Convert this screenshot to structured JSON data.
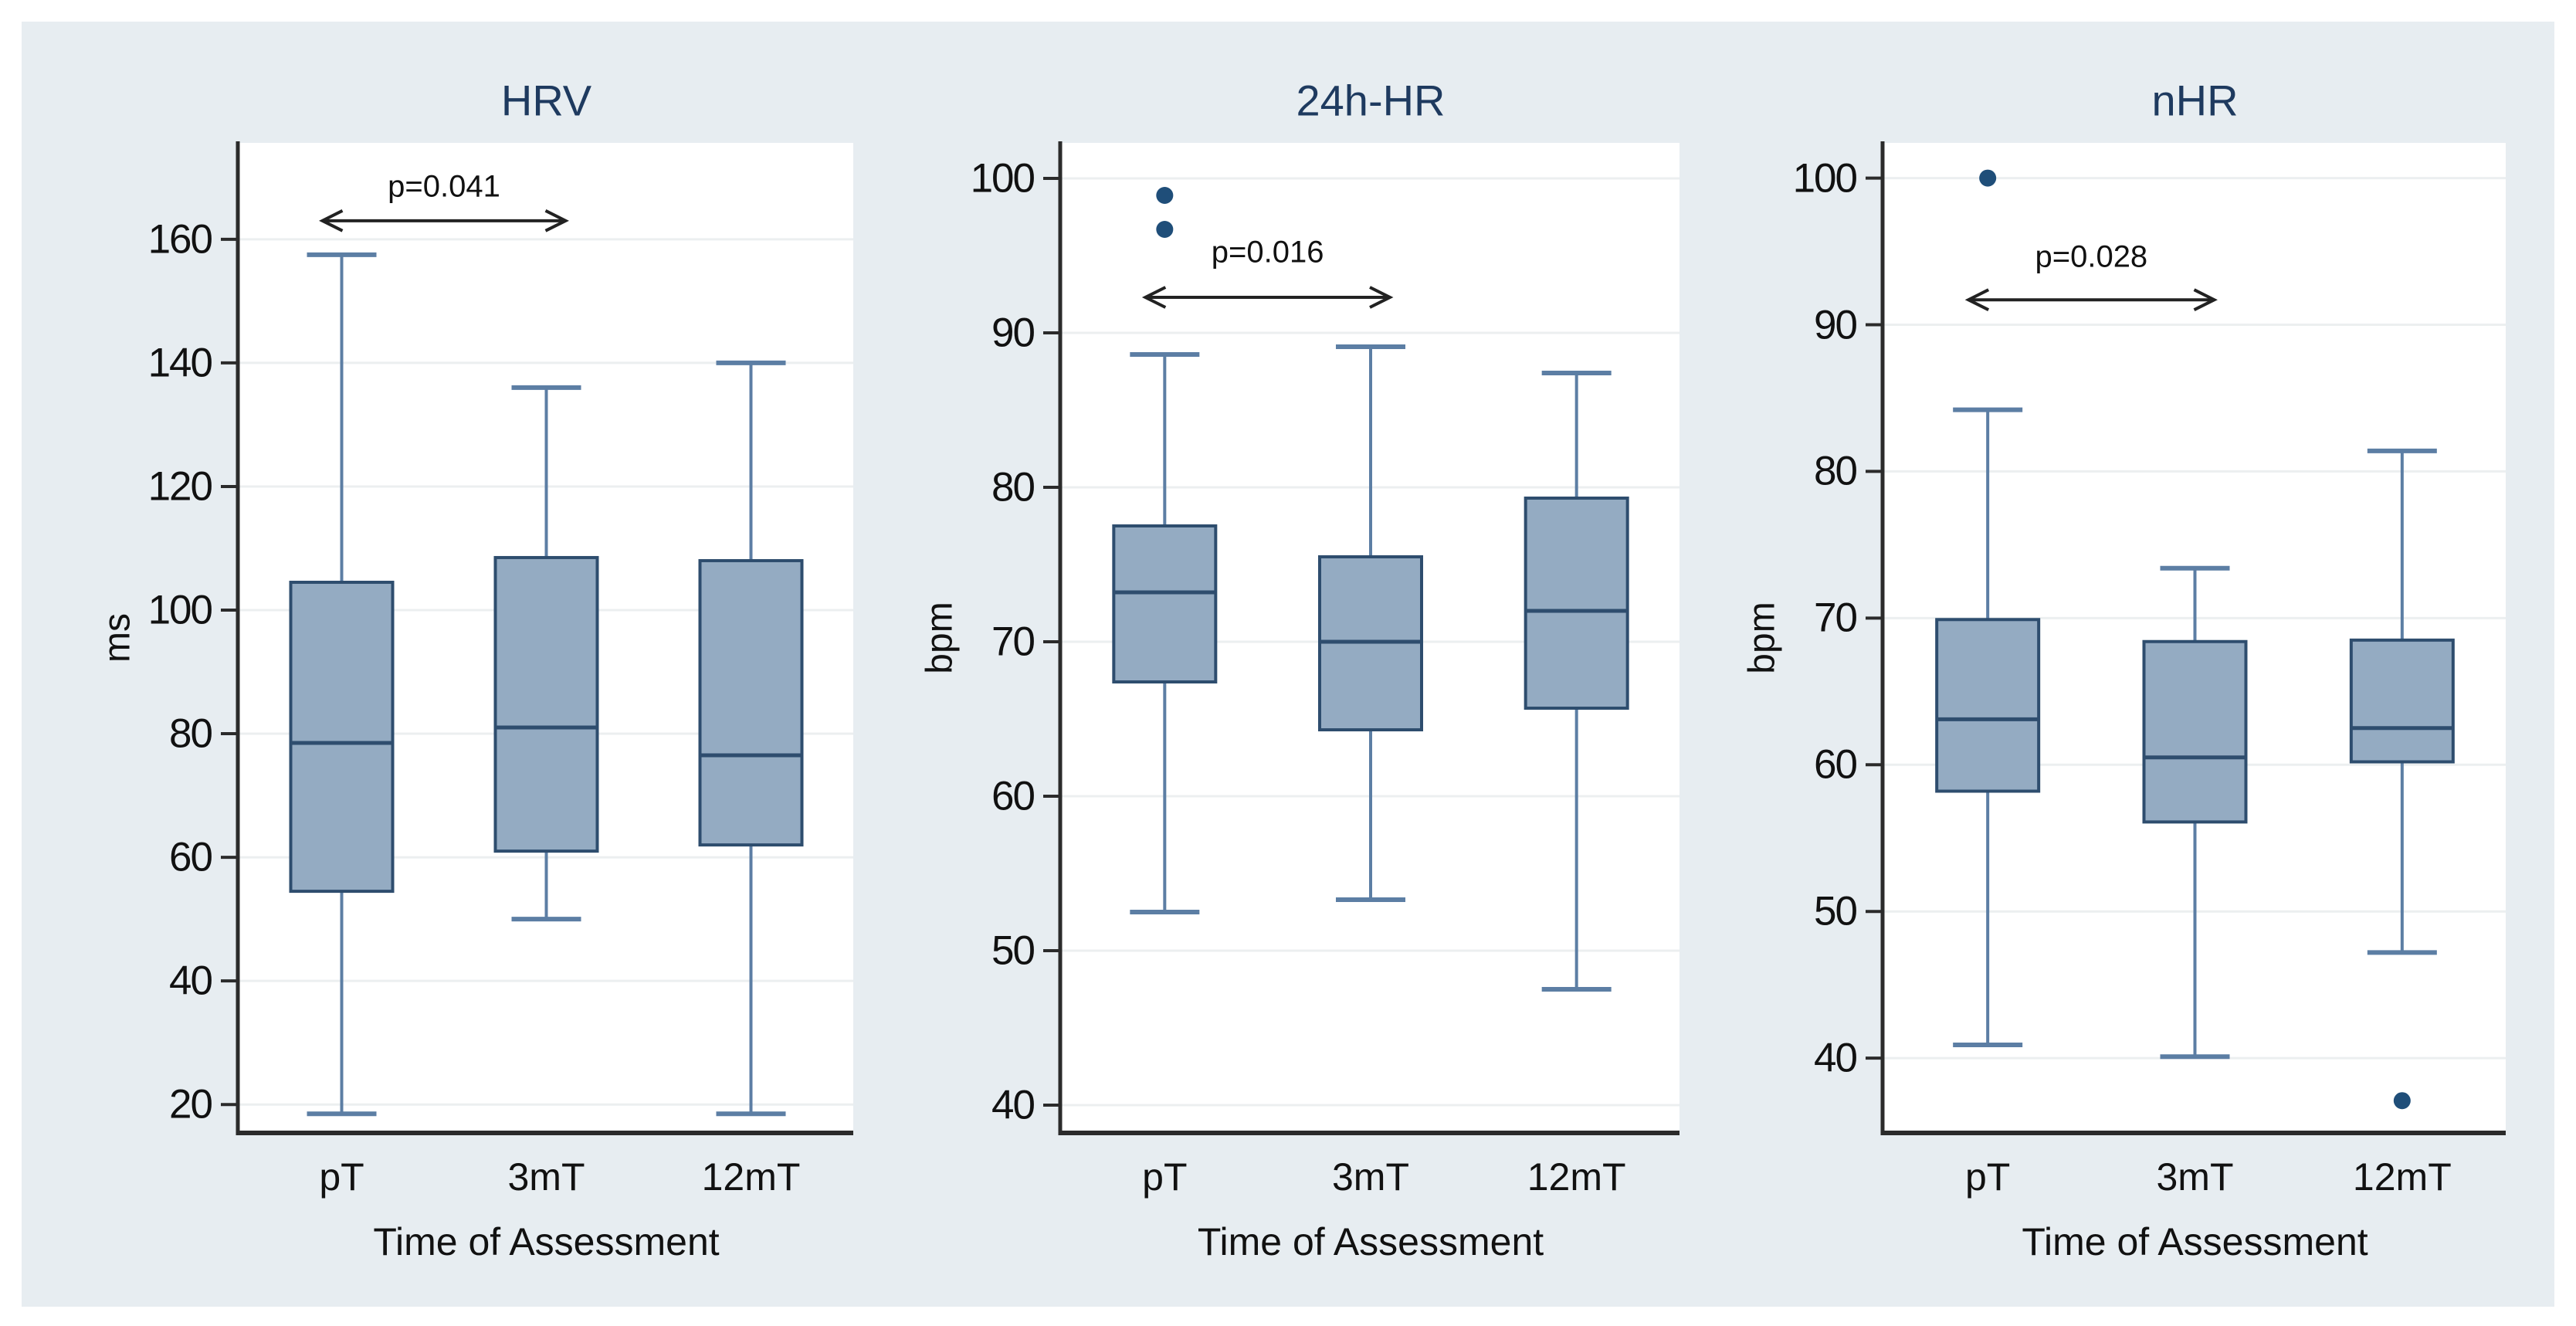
{
  "colors": {
    "figure_background": "#e7edf1",
    "plot_background": "#ffffff",
    "grid_line": "#eceff0",
    "axis_line": "#2b2b2b",
    "text": "#111111",
    "title_text": "#1e3a5f",
    "box_fill": "#94abc2",
    "box_border": "#2e4d6e",
    "median_line": "#2e4d6e",
    "whisker": "#5c7ea4",
    "outlier": "#1f4e79",
    "annotation": "#222222"
  },
  "chart_data": [
    {
      "type": "box",
      "title": "HRV",
      "ylabel": "ms",
      "xlabel": "Time of Assessment",
      "categories": [
        "pT",
        "3mT",
        "12mT"
      ],
      "y_ticks": [
        20,
        40,
        60,
        80,
        100,
        120,
        140,
        160
      ],
      "y_domain": [
        15.4,
        175.6
      ],
      "grid": true,
      "legend": "none",
      "boxes": [
        {
          "category": "pT",
          "whisker_low": 18.5,
          "q1": 54.5,
          "median": 78.5,
          "q3": 104.5,
          "whisker_high": 157.5,
          "outliers": []
        },
        {
          "category": "3mT",
          "whisker_low": 50,
          "q1": 61,
          "median": 81,
          "q3": 108.5,
          "whisker_high": 136,
          "outliers": []
        },
        {
          "category": "12mT",
          "whisker_low": 18.5,
          "q1": 62,
          "median": 76.5,
          "q3": 108,
          "whisker_high": 140,
          "outliers": []
        }
      ],
      "significance": {
        "label": "p=0.041",
        "between": [
          "pT",
          "3mT"
        ],
        "arrow_y": 163,
        "text_y": 168.5
      }
    },
    {
      "type": "box",
      "title": "24h-HR",
      "ylabel": "bpm",
      "xlabel": "Time of Assessment",
      "categories": [
        "pT",
        "3mT",
        "12mT"
      ],
      "y_ticks": [
        40,
        50,
        60,
        70,
        80,
        90,
        100
      ],
      "y_domain": [
        38.2,
        102.3
      ],
      "grid": true,
      "legend": "none",
      "boxes": [
        {
          "category": "pT",
          "whisker_low": 52.5,
          "q1": 67.4,
          "median": 73.2,
          "q3": 77.5,
          "whisker_high": 88.6,
          "outliers": [
            98.9,
            96.7
          ]
        },
        {
          "category": "3mT",
          "whisker_low": 53.3,
          "q1": 64.3,
          "median": 70,
          "q3": 75.5,
          "whisker_high": 89.1,
          "outliers": []
        },
        {
          "category": "12mT",
          "whisker_low": 47.5,
          "q1": 65.7,
          "median": 72,
          "q3": 79.3,
          "whisker_high": 87.4,
          "outliers": []
        }
      ],
      "significance": {
        "label": "p=0.016",
        "between": [
          "pT",
          "3mT"
        ],
        "arrow_y": 92.3,
        "text_y": 95.2
      }
    },
    {
      "type": "box",
      "title": "nHR",
      "ylabel": "bpm",
      "xlabel": "Time of Assessment",
      "categories": [
        "pT",
        "3mT",
        "12mT"
      ],
      "y_ticks": [
        40,
        50,
        60,
        70,
        80,
        90,
        100
      ],
      "y_domain": [
        34.9,
        102.4
      ],
      "grid": true,
      "legend": "none",
      "boxes": [
        {
          "category": "pT",
          "whisker_low": 40.9,
          "q1": 58.2,
          "median": 63.1,
          "q3": 69.9,
          "whisker_high": 84.2,
          "outliers": [
            100
          ]
        },
        {
          "category": "3mT",
          "whisker_low": 40.1,
          "q1": 56.1,
          "median": 60.5,
          "q3": 68.4,
          "whisker_high": 73.4,
          "outliers": []
        },
        {
          "category": "12mT",
          "whisker_low": 47.2,
          "q1": 60.2,
          "median": 62.5,
          "q3": 68.5,
          "whisker_high": 81.4,
          "outliers": [
            37.1
          ]
        }
      ],
      "significance": {
        "label": "p=0.028",
        "between": [
          "pT",
          "3mT"
        ],
        "arrow_y": 91.7,
        "text_y": 94.6
      }
    }
  ]
}
